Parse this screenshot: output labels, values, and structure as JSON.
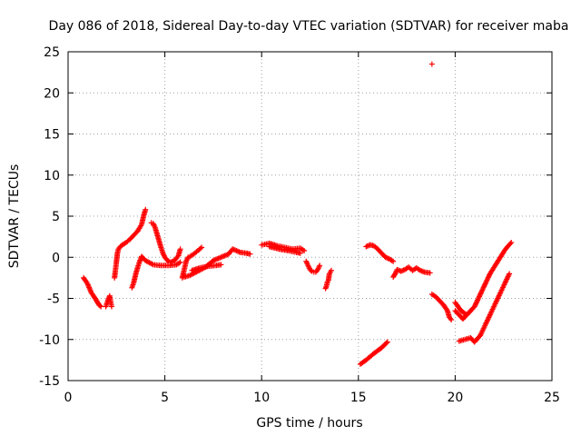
{
  "chart_data": {
    "type": "scatter",
    "title": "Day 086 of 2018, Sidereal Day-to-day VTEC variation (SDTVAR) for receiver maba",
    "xlabel": "GPS time / hours",
    "ylabel": "SDTVAR / TECUs",
    "xlim": [
      0,
      25
    ],
    "ylim": [
      -15,
      25
    ],
    "xticks": [
      0,
      5,
      10,
      15,
      20,
      25
    ],
    "yticks": [
      -15,
      -10,
      -5,
      0,
      5,
      10,
      15,
      20,
      25
    ],
    "xtick_labels": [
      "0",
      "5",
      "10",
      "15",
      "20",
      "25"
    ],
    "ytick_labels": [
      "-15",
      "-10",
      "-5",
      "0",
      "5",
      "10",
      "15",
      "20",
      "25"
    ],
    "grid": true,
    "marker": "+",
    "color": "#ff0000",
    "series": [
      {
        "name": "seg01",
        "x": [
          0.8,
          1.0,
          1.2,
          1.4,
          1.5,
          1.6,
          1.7
        ],
        "y": [
          -2.5,
          -3.2,
          -4.3,
          -5.0,
          -5.4,
          -5.8,
          -6.0
        ]
      },
      {
        "name": "seg02",
        "x": [
          1.95,
          2.05,
          2.15,
          2.25
        ],
        "y": [
          -6.0,
          -5.3,
          -4.7,
          -6.0
        ]
      },
      {
        "name": "seg03",
        "x": [
          2.4,
          2.45,
          2.5,
          2.55,
          2.6,
          2.7,
          2.8,
          3.0,
          3.2,
          3.4,
          3.6,
          3.8,
          3.9,
          4.0
        ],
        "y": [
          -2.5,
          -1.5,
          -0.5,
          0.5,
          1.0,
          1.3,
          1.5,
          1.8,
          2.2,
          2.7,
          3.2,
          4.0,
          5.0,
          5.8
        ]
      },
      {
        "name": "seg04",
        "x": [
          3.3,
          3.4,
          3.5,
          3.6,
          3.7,
          3.8,
          4.0,
          4.4,
          4.8,
          5.2,
          5.6,
          5.8
        ],
        "y": [
          -3.7,
          -3.0,
          -2.0,
          -1.2,
          -0.5,
          0.1,
          -0.4,
          -0.9,
          -1.0,
          -1.0,
          -0.9,
          -0.6
        ]
      },
      {
        "name": "seg05",
        "x": [
          4.3,
          4.4,
          4.5,
          4.6,
          4.7,
          4.8,
          4.9,
          5.0,
          5.1,
          5.2,
          5.3,
          5.5,
          5.7,
          5.8
        ],
        "y": [
          4.2,
          4.1,
          3.6,
          2.8,
          2.0,
          1.2,
          0.5,
          0.0,
          -0.3,
          -0.5,
          -0.6,
          -0.4,
          0.2,
          1.0
        ]
      },
      {
        "name": "seg06",
        "x": [
          5.9,
          6.0,
          6.1,
          6.2,
          6.3,
          6.5,
          6.7,
          6.9
        ],
        "y": [
          -2.5,
          -1.5,
          -0.5,
          0.0,
          0.1,
          0.4,
          0.8,
          1.2
        ]
      },
      {
        "name": "seg07",
        "x": [
          6.0,
          6.3,
          6.7,
          7.1,
          7.5,
          7.9,
          8.3,
          8.5,
          8.7,
          8.9,
          9.2,
          9.4
        ],
        "y": [
          -2.4,
          -2.2,
          -1.7,
          -1.2,
          -0.4,
          0.0,
          0.4,
          1.0,
          0.8,
          0.6,
          0.5,
          0.4
        ]
      },
      {
        "name": "seg08",
        "x": [
          6.4,
          6.8,
          7.2,
          7.6,
          7.9
        ],
        "y": [
          -1.6,
          -1.3,
          -1.1,
          -1.0,
          -0.9
        ]
      },
      {
        "name": "seg09",
        "x": [
          10.0,
          10.4,
          10.8,
          11.2,
          11.6,
          12.0,
          12.2
        ],
        "y": [
          1.5,
          1.7,
          1.4,
          1.2,
          1.0,
          1.1,
          0.8
        ]
      },
      {
        "name": "seg10",
        "x": [
          10.4,
          10.9,
          11.4,
          11.8,
          12.0
        ],
        "y": [
          1.3,
          1.0,
          0.8,
          0.6,
          0.5
        ]
      },
      {
        "name": "seg11",
        "x": [
          12.3,
          12.4,
          12.5,
          12.6,
          12.7,
          12.8,
          12.9,
          13.0
        ],
        "y": [
          -0.5,
          -1.0,
          -1.5,
          -1.7,
          -1.8,
          -1.8,
          -1.5,
          -1.0
        ]
      },
      {
        "name": "seg12",
        "x": [
          13.3,
          13.35,
          13.4,
          13.45,
          13.5,
          13.55,
          13.6
        ],
        "y": [
          -3.8,
          -3.5,
          -3.0,
          -2.8,
          -2.0,
          -1.8,
          -1.6
        ]
      },
      {
        "name": "seg13",
        "x": [
          15.1,
          15.4,
          15.8,
          16.2,
          16.5
        ],
        "y": [
          -13.0,
          -12.5,
          -11.7,
          -11.0,
          -10.3
        ]
      },
      {
        "name": "seg14",
        "x": [
          15.4,
          15.6,
          15.8,
          16.0,
          16.2,
          16.4,
          16.6,
          16.8
        ],
        "y": [
          1.3,
          1.5,
          1.4,
          1.0,
          0.5,
          0.0,
          -0.2,
          -0.5
        ]
      },
      {
        "name": "seg15",
        "x": [
          16.8,
          16.9,
          17.0,
          17.2,
          17.4,
          17.6,
          17.8,
          18.0,
          18.2,
          18.4,
          18.7
        ],
        "y": [
          -2.4,
          -2.0,
          -1.5,
          -1.7,
          -1.5,
          -1.2,
          -1.6,
          -1.3,
          -1.6,
          -1.8,
          -1.9
        ]
      },
      {
        "name": "seg16",
        "x": [
          18.8,
          19.0,
          19.2,
          19.4,
          19.6,
          19.7,
          19.8
        ],
        "y": [
          -4.5,
          -4.8,
          -5.3,
          -5.8,
          -6.5,
          -7.3,
          -7.6
        ]
      },
      {
        "name": "seg17",
        "x": [
          20.0,
          20.2,
          20.4,
          20.6,
          20.8
        ],
        "y": [
          -6.5,
          -7.0,
          -7.5,
          -7.0,
          -6.5
        ]
      },
      {
        "name": "seg18",
        "x": [
          20.0,
          20.3,
          20.6,
          21.0,
          21.4,
          21.8,
          22.2,
          22.6,
          22.9
        ],
        "y": [
          -5.5,
          -6.5,
          -7.0,
          -6.0,
          -4.0,
          -2.0,
          -0.5,
          1.0,
          1.8
        ]
      },
      {
        "name": "seg19",
        "x": [
          20.2,
          20.5,
          20.8,
          21.0,
          21.3,
          21.6,
          21.9,
          22.2,
          22.5,
          22.8
        ],
        "y": [
          -10.2,
          -10.0,
          -9.8,
          -10.3,
          -9.5,
          -8.0,
          -6.5,
          -5.0,
          -3.5,
          -2.0
        ]
      },
      {
        "name": "seg20",
        "x": [
          18.8
        ],
        "y": [
          23.5
        ]
      }
    ]
  }
}
